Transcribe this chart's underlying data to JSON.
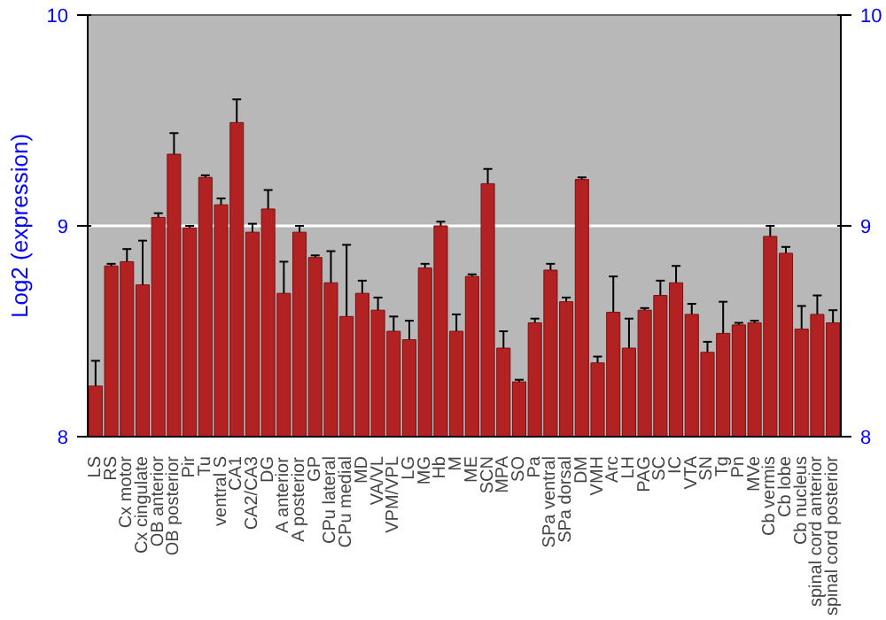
{
  "chart_data": {
    "type": "bar",
    "ylabel": "Log2 (expression)",
    "categories": [
      "LS",
      "RS",
      "Cx motor",
      "Cx cingulate",
      "OB anterior",
      "OB posterior",
      "Pir",
      "Tu",
      "ventral S",
      "CA1",
      "CA2/CA3",
      "DG",
      "A anterior",
      "A posterior",
      "GP",
      "CPu lateral",
      "CPu medial",
      "MD",
      "VA/VL",
      "VPM/VPL",
      "LG",
      "MG",
      "Hb",
      "M",
      "ME",
      "SCN",
      "MPA",
      "SO",
      "Pa",
      "SPa ventral",
      "SPa dorsal",
      "DM",
      "VMH",
      "Arc",
      "LH",
      "PAG",
      "SC",
      "IC",
      "VTA",
      "SN",
      "Tg",
      "Pn",
      "MVe",
      "Cb vermis",
      "Cb lobe",
      "Cb nucleus",
      "spinal cord anterior",
      "spinal cord posterior"
    ],
    "values": [
      8.24,
      8.81,
      8.83,
      8.72,
      9.04,
      9.34,
      8.99,
      9.23,
      9.1,
      9.49,
      8.97,
      9.08,
      8.68,
      8.97,
      8.85,
      8.73,
      8.57,
      8.68,
      8.6,
      8.5,
      8.46,
      8.8,
      9.0,
      8.5,
      8.76,
      9.2,
      8.42,
      8.26,
      8.54,
      8.79,
      8.64,
      9.22,
      8.35,
      8.59,
      8.42,
      8.6,
      8.67,
      8.73,
      8.58,
      8.4,
      8.49,
      8.53,
      8.54,
      8.95,
      8.87,
      8.51,
      8.58,
      8.54
    ],
    "errors": [
      0.12,
      0.01,
      0.06,
      0.21,
      0.02,
      0.1,
      0.01,
      0.01,
      0.03,
      0.11,
      0.04,
      0.09,
      0.15,
      0.03,
      0.01,
      0.15,
      0.34,
      0.06,
      0.06,
      0.07,
      0.09,
      0.02,
      0.02,
      0.08,
      0.01,
      0.07,
      0.08,
      0.01,
      0.02,
      0.03,
      0.02,
      0.01,
      0.03,
      0.17,
      0.14,
      0.01,
      0.07,
      0.08,
      0.05,
      0.05,
      0.15,
      0.01,
      0.01,
      0.05,
      0.03,
      0.11,
      0.09,
      0.06
    ],
    "color": "#b22222",
    "ylim": [
      8,
      10
    ],
    "yticks": [
      8,
      9,
      10
    ],
    "y2lim": [
      8,
      10
    ],
    "y2ticks": [
      8,
      9,
      10
    ],
    "grid": "y"
  }
}
